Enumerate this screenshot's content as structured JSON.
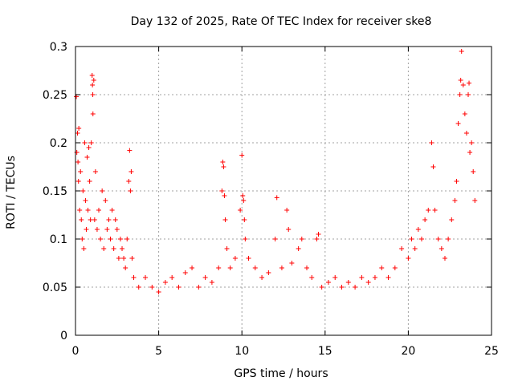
{
  "chart_data": {
    "type": "scatter",
    "title": "Day 132 of 2025, Rate Of TEC Index for receiver ske8",
    "xlabel": "GPS time / hours",
    "ylabel": "ROTI / TECUs",
    "xlim": [
      0,
      25
    ],
    "ylim": [
      0,
      0.3
    ],
    "xticks": [
      0,
      5,
      10,
      15,
      20,
      25
    ],
    "xtick_labels": [
      "0",
      "5",
      "10",
      "15",
      "20",
      "25"
    ],
    "yticks": [
      0,
      0.05,
      0.1,
      0.15,
      0.2,
      0.25,
      0.3
    ],
    "ytick_labels": [
      "0",
      "0.05",
      "0.1",
      "0.15",
      "0.2",
      "0.25",
      "0.3"
    ],
    "grid": true,
    "marker": "+",
    "series": [
      {
        "name": "ROTI",
        "color": "#ff0000",
        "points": [
          [
            0.05,
            0.248
          ],
          [
            0.08,
            0.19
          ],
          [
            0.12,
            0.21
          ],
          [
            0.15,
            0.18
          ],
          [
            0.18,
            0.16
          ],
          [
            0.2,
            0.215
          ],
          [
            0.25,
            0.13
          ],
          [
            0.3,
            0.17
          ],
          [
            0.35,
            0.12
          ],
          [
            0.4,
            0.1
          ],
          [
            0.45,
            0.15
          ],
          [
            0.5,
            0.09
          ],
          [
            0.55,
            0.2
          ],
          [
            0.6,
            0.14
          ],
          [
            0.65,
            0.11
          ],
          [
            0.7,
            0.185
          ],
          [
            0.75,
            0.13
          ],
          [
            0.8,
            0.195
          ],
          [
            0.85,
            0.16
          ],
          [
            0.9,
            0.12
          ],
          [
            0.95,
            0.2
          ],
          [
            1.0,
            0.27
          ],
          [
            1.02,
            0.26
          ],
          [
            1.04,
            0.25
          ],
          [
            1.05,
            0.23
          ],
          [
            1.1,
            0.265
          ],
          [
            1.15,
            0.12
          ],
          [
            1.2,
            0.17
          ],
          [
            1.3,
            0.11
          ],
          [
            1.4,
            0.13
          ],
          [
            1.5,
            0.1
          ],
          [
            1.6,
            0.15
          ],
          [
            1.7,
            0.09
          ],
          [
            1.8,
            0.14
          ],
          [
            1.9,
            0.11
          ],
          [
            2.0,
            0.12
          ],
          [
            2.1,
            0.1
          ],
          [
            2.2,
            0.13
          ],
          [
            2.3,
            0.09
          ],
          [
            2.4,
            0.12
          ],
          [
            2.5,
            0.11
          ],
          [
            2.6,
            0.08
          ],
          [
            2.7,
            0.1
          ],
          [
            2.8,
            0.09
          ],
          [
            2.9,
            0.08
          ],
          [
            3.0,
            0.07
          ],
          [
            3.1,
            0.1
          ],
          [
            3.2,
            0.16
          ],
          [
            3.25,
            0.192
          ],
          [
            3.3,
            0.15
          ],
          [
            3.35,
            0.17
          ],
          [
            3.4,
            0.08
          ],
          [
            3.5,
            0.06
          ],
          [
            3.8,
            0.05
          ],
          [
            4.2,
            0.06
          ],
          [
            4.6,
            0.05
          ],
          [
            5.0,
            0.045
          ],
          [
            5.4,
            0.055
          ],
          [
            5.8,
            0.06
          ],
          [
            6.2,
            0.05
          ],
          [
            6.6,
            0.065
          ],
          [
            7.0,
            0.07
          ],
          [
            7.4,
            0.05
          ],
          [
            7.8,
            0.06
          ],
          [
            8.2,
            0.055
          ],
          [
            8.6,
            0.07
          ],
          [
            8.8,
            0.15
          ],
          [
            8.85,
            0.18
          ],
          [
            8.9,
            0.175
          ],
          [
            8.95,
            0.145
          ],
          [
            9.0,
            0.12
          ],
          [
            9.1,
            0.09
          ],
          [
            9.3,
            0.07
          ],
          [
            9.6,
            0.08
          ],
          [
            9.9,
            0.13
          ],
          [
            10.0,
            0.187
          ],
          [
            10.05,
            0.145
          ],
          [
            10.1,
            0.14
          ],
          [
            10.15,
            0.12
          ],
          [
            10.2,
            0.1
          ],
          [
            10.4,
            0.08
          ],
          [
            10.8,
            0.07
          ],
          [
            11.2,
            0.06
          ],
          [
            11.6,
            0.065
          ],
          [
            12.0,
            0.1
          ],
          [
            12.1,
            0.143
          ],
          [
            12.4,
            0.07
          ],
          [
            12.7,
            0.13
          ],
          [
            12.8,
            0.11
          ],
          [
            13.0,
            0.075
          ],
          [
            13.4,
            0.09
          ],
          [
            13.6,
            0.1
          ],
          [
            13.9,
            0.07
          ],
          [
            14.2,
            0.06
          ],
          [
            14.5,
            0.1
          ],
          [
            14.6,
            0.105
          ],
          [
            14.8,
            0.05
          ],
          [
            15.2,
            0.055
          ],
          [
            15.6,
            0.06
          ],
          [
            16.0,
            0.05
          ],
          [
            16.4,
            0.055
          ],
          [
            16.8,
            0.05
          ],
          [
            17.2,
            0.06
          ],
          [
            17.6,
            0.055
          ],
          [
            18.0,
            0.06
          ],
          [
            18.4,
            0.07
          ],
          [
            18.8,
            0.06
          ],
          [
            19.2,
            0.07
          ],
          [
            19.6,
            0.09
          ],
          [
            20.0,
            0.08
          ],
          [
            20.2,
            0.1
          ],
          [
            20.4,
            0.09
          ],
          [
            20.6,
            0.11
          ],
          [
            20.8,
            0.1
          ],
          [
            21.0,
            0.12
          ],
          [
            21.2,
            0.13
          ],
          [
            21.4,
            0.2
          ],
          [
            21.5,
            0.175
          ],
          [
            21.6,
            0.13
          ],
          [
            21.8,
            0.1
          ],
          [
            22.0,
            0.09
          ],
          [
            22.2,
            0.08
          ],
          [
            22.4,
            0.1
          ],
          [
            22.6,
            0.12
          ],
          [
            22.8,
            0.14
          ],
          [
            22.9,
            0.16
          ],
          [
            23.0,
            0.22
          ],
          [
            23.1,
            0.25
          ],
          [
            23.15,
            0.265
          ],
          [
            23.2,
            0.295
          ],
          [
            23.3,
            0.26
          ],
          [
            23.4,
            0.23
          ],
          [
            23.5,
            0.21
          ],
          [
            23.6,
            0.25
          ],
          [
            23.65,
            0.262
          ],
          [
            23.7,
            0.19
          ],
          [
            23.8,
            0.2
          ],
          [
            23.9,
            0.17
          ],
          [
            24.0,
            0.14
          ]
        ]
      }
    ]
  }
}
